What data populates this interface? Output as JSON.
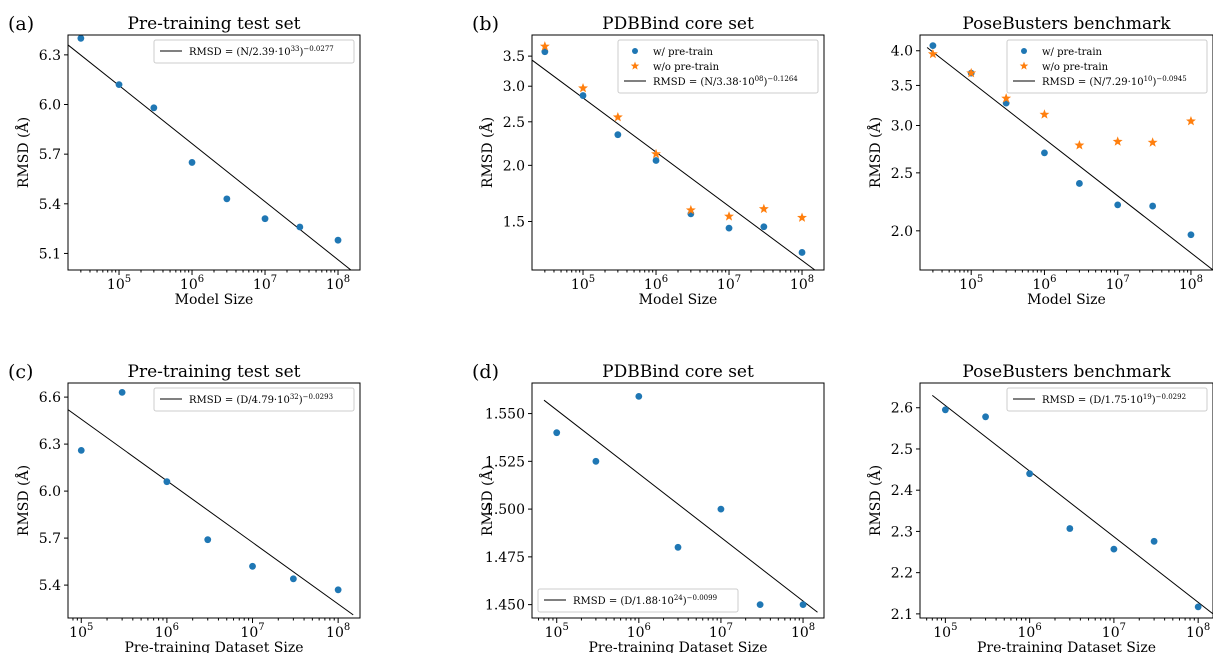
{
  "colors": {
    "pretrain": "#1f77b4",
    "no_pretrain": "#ff7f0e",
    "fit": "#000000"
  },
  "chart_data": [
    {
      "id": "a",
      "panel_label": "(a)",
      "type": "scatter",
      "title": "Pre-training test set",
      "xlabel": "Model Size",
      "ylabel": "RMSD (Å)",
      "xscale": "log",
      "yscale": "linear",
      "xlim": [
        20000,
        200000000
      ],
      "ylim": [
        5.0,
        6.42
      ],
      "yticks": [
        {
          "v": 5.1,
          "label": "5.1"
        },
        {
          "v": 5.4,
          "label": "5.4"
        },
        {
          "v": 5.7,
          "label": "5.7"
        },
        {
          "v": 6.0,
          "label": "6.0"
        },
        {
          "v": 6.3,
          "label": "6.3"
        }
      ],
      "xticks": [
        {
          "v": 100000,
          "base": "10",
          "exp": "5"
        },
        {
          "v": 1000000,
          "base": "10",
          "exp": "6"
        },
        {
          "v": 10000000,
          "base": "10",
          "exp": "7"
        },
        {
          "v": 100000000,
          "base": "10",
          "exp": "8"
        }
      ],
      "series": [
        {
          "kind": "points",
          "marker": "circle",
          "color": "#1f77b4",
          "x": [
            30000,
            100000,
            300000,
            1000000,
            3000000,
            10000000,
            30000000,
            100000000
          ],
          "y": [
            6.4,
            6.12,
            5.98,
            5.65,
            5.43,
            5.31,
            5.26,
            5.18
          ]
        },
        {
          "kind": "line",
          "color": "#000000",
          "x": [
            20000,
            150000000
          ],
          "y": [
            6.36,
            5.0
          ]
        }
      ],
      "legend": {
        "position": "upper-right",
        "entries": [
          {
            "kind": "line",
            "label": "RMSD = (N/2.39·10",
            "exp": "33",
            "tail": ")",
            "texp": "−0.0277"
          }
        ]
      }
    },
    {
      "id": "b",
      "panel_label": "(b)",
      "type": "scatter",
      "title": "PDBBind core set",
      "xlabel": "Model Size",
      "ylabel": "RMSD (Å)",
      "xscale": "log",
      "yscale": "log",
      "xlim": [
        20000,
        200000000
      ],
      "ylim": [
        1.17,
        3.9
      ],
      "yticks": [
        {
          "v": 1.5,
          "label": "1.5"
        },
        {
          "v": 2.0,
          "label": "2.0"
        },
        {
          "v": 2.5,
          "label": "2.5"
        },
        {
          "v": 3.0,
          "label": "3.0"
        },
        {
          "v": 3.5,
          "label": "3.5"
        }
      ],
      "xticks": [
        {
          "v": 100000,
          "base": "10",
          "exp": "5"
        },
        {
          "v": 1000000,
          "base": "10",
          "exp": "6"
        },
        {
          "v": 10000000,
          "base": "10",
          "exp": "7"
        },
        {
          "v": 100000000,
          "base": "10",
          "exp": "8"
        }
      ],
      "series": [
        {
          "kind": "points",
          "marker": "circle",
          "color": "#1f77b4",
          "name": "w/ pre-train",
          "x": [
            30000,
            100000,
            300000,
            1000000,
            3000000,
            10000000,
            30000000,
            100000000
          ],
          "y": [
            3.58,
            2.86,
            2.34,
            2.05,
            1.56,
            1.45,
            1.46,
            1.28
          ]
        },
        {
          "kind": "points",
          "marker": "star",
          "color": "#ff7f0e",
          "name": "w/o pre-train",
          "x": [
            30000,
            100000,
            300000,
            1000000,
            3000000,
            10000000,
            30000000,
            100000000
          ],
          "y": [
            3.68,
            2.97,
            2.56,
            2.12,
            1.59,
            1.54,
            1.6,
            1.53
          ]
        },
        {
          "kind": "line",
          "color": "#000000",
          "x": [
            20000,
            150000000
          ],
          "y": [
            3.43,
            1.17
          ]
        }
      ],
      "legend": {
        "position": "upper-right",
        "entries": [
          {
            "kind": "circle",
            "color": "#1f77b4",
            "label": "w/ pre-train"
          },
          {
            "kind": "star",
            "color": "#ff7f0e",
            "label": "w/o pre-train"
          },
          {
            "kind": "line",
            "label": "RMSD = (N/3.38·10",
            "exp": "08",
            "tail": ")",
            "texp": "−0.1264"
          }
        ]
      }
    },
    {
      "id": "b2",
      "panel_label": "",
      "type": "scatter",
      "title": "PoseBusters benchmark",
      "xlabel": "Model Size",
      "ylabel": "RMSD (Å)",
      "xscale": "log",
      "yscale": "log",
      "xlim": [
        20000,
        200000000
      ],
      "ylim": [
        1.72,
        4.25
      ],
      "yticks": [
        {
          "v": 2.0,
          "label": "2.0"
        },
        {
          "v": 2.5,
          "label": "2.5"
        },
        {
          "v": 3.0,
          "label": "3.0"
        },
        {
          "v": 3.5,
          "label": "3.5"
        },
        {
          "v": 4.0,
          "label": "4.0"
        }
      ],
      "xticks": [
        {
          "v": 100000,
          "base": "10",
          "exp": "5"
        },
        {
          "v": 1000000,
          "base": "10",
          "exp": "6"
        },
        {
          "v": 10000000,
          "base": "10",
          "exp": "7"
        },
        {
          "v": 100000000,
          "base": "10",
          "exp": "8"
        }
      ],
      "series": [
        {
          "kind": "points",
          "marker": "circle",
          "color": "#1f77b4",
          "name": "w/ pre-train",
          "x": [
            30000,
            100000,
            300000,
            1000000,
            3000000,
            10000000,
            30000000,
            100000000
          ],
          "y": [
            4.08,
            3.67,
            3.27,
            2.7,
            2.4,
            2.21,
            2.2,
            1.97
          ]
        },
        {
          "kind": "points",
          "marker": "star",
          "color": "#ff7f0e",
          "name": "w/o pre-train",
          "x": [
            30000,
            100000,
            300000,
            1000000,
            3000000,
            10000000,
            30000000,
            100000000
          ],
          "y": [
            3.95,
            3.67,
            3.33,
            3.13,
            2.78,
            2.82,
            2.81,
            3.05
          ]
        },
        {
          "kind": "line",
          "color": "#000000",
          "x": [
            25000,
            200000000
          ],
          "y": [
            4.05,
            1.72
          ]
        }
      ],
      "legend": {
        "position": "upper-right",
        "entries": [
          {
            "kind": "circle",
            "color": "#1f77b4",
            "label": "w/ pre-train"
          },
          {
            "kind": "star",
            "color": "#ff7f0e",
            "label": "w/o pre-train"
          },
          {
            "kind": "line",
            "label": "RMSD = (N/7.29·10",
            "exp": "10",
            "tail": ")",
            "texp": "−0.0945"
          }
        ]
      }
    },
    {
      "id": "c",
      "panel_label": "(c)",
      "type": "scatter",
      "title": "Pre-training test set",
      "xlabel": "Pre-training Dataset Size",
      "ylabel": "RMSD (Å)",
      "xscale": "log",
      "yscale": "linear",
      "xlim": [
        70000,
        180000000
      ],
      "ylim": [
        5.19,
        6.69
      ],
      "yticks": [
        {
          "v": 5.4,
          "label": "5.4"
        },
        {
          "v": 5.7,
          "label": "5.7"
        },
        {
          "v": 6.0,
          "label": "6.0"
        },
        {
          "v": 6.3,
          "label": "6.3"
        },
        {
          "v": 6.6,
          "label": "6.6"
        }
      ],
      "xticks": [
        {
          "v": 100000,
          "base": "10",
          "exp": "5"
        },
        {
          "v": 1000000,
          "base": "10",
          "exp": "6"
        },
        {
          "v": 10000000,
          "base": "10",
          "exp": "7"
        },
        {
          "v": 100000000,
          "base": "10",
          "exp": "8"
        }
      ],
      "series": [
        {
          "kind": "points",
          "marker": "circle",
          "color": "#1f77b4",
          "x": [
            100000,
            300000,
            1000000,
            3000000,
            10000000,
            30000000,
            100000000
          ],
          "y": [
            6.26,
            6.63,
            6.06,
            5.69,
            5.52,
            5.44,
            5.37
          ]
        },
        {
          "kind": "line",
          "color": "#000000",
          "x": [
            70000,
            150000000
          ],
          "y": [
            6.52,
            5.21
          ]
        }
      ],
      "legend": {
        "position": "upper-right",
        "entries": [
          {
            "kind": "line",
            "label": "RMSD = (D/4.79·10",
            "exp": "32",
            "tail": ")",
            "texp": "−0.0293"
          }
        ]
      }
    },
    {
      "id": "d",
      "panel_label": "(d)",
      "type": "scatter",
      "title": "PDBBind core set",
      "xlabel": "Pre-training Dataset Size",
      "ylabel": "RMSD (Å)",
      "xscale": "log",
      "yscale": "linear",
      "xlim": [
        50000,
        180000000
      ],
      "ylim": [
        1.443,
        1.566
      ],
      "yticks": [
        {
          "v": 1.45,
          "label": "1.450"
        },
        {
          "v": 1.475,
          "label": "1.475"
        },
        {
          "v": 1.5,
          "label": "1.500"
        },
        {
          "v": 1.525,
          "label": "1.525"
        },
        {
          "v": 1.55,
          "label": "1.550"
        }
      ],
      "xticks": [
        {
          "v": 100000,
          "base": "10",
          "exp": "5"
        },
        {
          "v": 1000000,
          "base": "10",
          "exp": "6"
        },
        {
          "v": 10000000,
          "base": "10",
          "exp": "7"
        },
        {
          "v": 100000000,
          "base": "10",
          "exp": "8"
        }
      ],
      "series": [
        {
          "kind": "points",
          "marker": "circle",
          "color": "#1f77b4",
          "x": [
            100000,
            300000,
            1000000,
            3000000,
            10000000,
            30000000,
            100000000
          ],
          "y": [
            1.54,
            1.525,
            1.559,
            1.48,
            1.5,
            1.45,
            1.45
          ]
        },
        {
          "kind": "line",
          "color": "#000000",
          "x": [
            70000,
            150000000
          ],
          "y": [
            1.557,
            1.446
          ]
        }
      ],
      "legend": {
        "position": "lower-left",
        "entries": [
          {
            "kind": "line",
            "label": "RMSD = (D/1.88·10",
            "exp": "24",
            "tail": ")",
            "texp": "−0.0099"
          }
        ]
      }
    },
    {
      "id": "d2",
      "panel_label": "",
      "type": "scatter",
      "title": "PoseBusters benchmark",
      "xlabel": "Pre-training Dataset Size",
      "ylabel": "RMSD (Å)",
      "xscale": "log",
      "yscale": "linear",
      "xlim": [
        50000,
        150000000
      ],
      "ylim": [
        2.09,
        2.66
      ],
      "yticks": [
        {
          "v": 2.1,
          "label": "2.1"
        },
        {
          "v": 2.2,
          "label": "2.2"
        },
        {
          "v": 2.3,
          "label": "2.3"
        },
        {
          "v": 2.4,
          "label": "2.4"
        },
        {
          "v": 2.5,
          "label": "2.5"
        },
        {
          "v": 2.6,
          "label": "2.6"
        }
      ],
      "xticks": [
        {
          "v": 100000,
          "base": "10",
          "exp": "5"
        },
        {
          "v": 1000000,
          "base": "10",
          "exp": "6"
        },
        {
          "v": 10000000,
          "base": "10",
          "exp": "7"
        },
        {
          "v": 100000000,
          "base": "10",
          "exp": "8"
        }
      ],
      "series": [
        {
          "kind": "points",
          "marker": "circle",
          "color": "#1f77b4",
          "x": [
            100000,
            300000,
            1000000,
            3000000,
            10000000,
            30000000,
            100000000
          ],
          "y": [
            2.595,
            2.578,
            2.44,
            2.307,
            2.257,
            2.276,
            2.117
          ]
        },
        {
          "kind": "line",
          "color": "#000000",
          "x": [
            70000,
            150000000
          ],
          "y": [
            2.63,
            2.1
          ]
        }
      ],
      "legend": {
        "position": "upper-right",
        "entries": [
          {
            "kind": "line",
            "label": "RMSD = (D/1.75·10",
            "exp": "19",
            "tail": ")",
            "texp": "−0.0292"
          }
        ]
      }
    }
  ]
}
